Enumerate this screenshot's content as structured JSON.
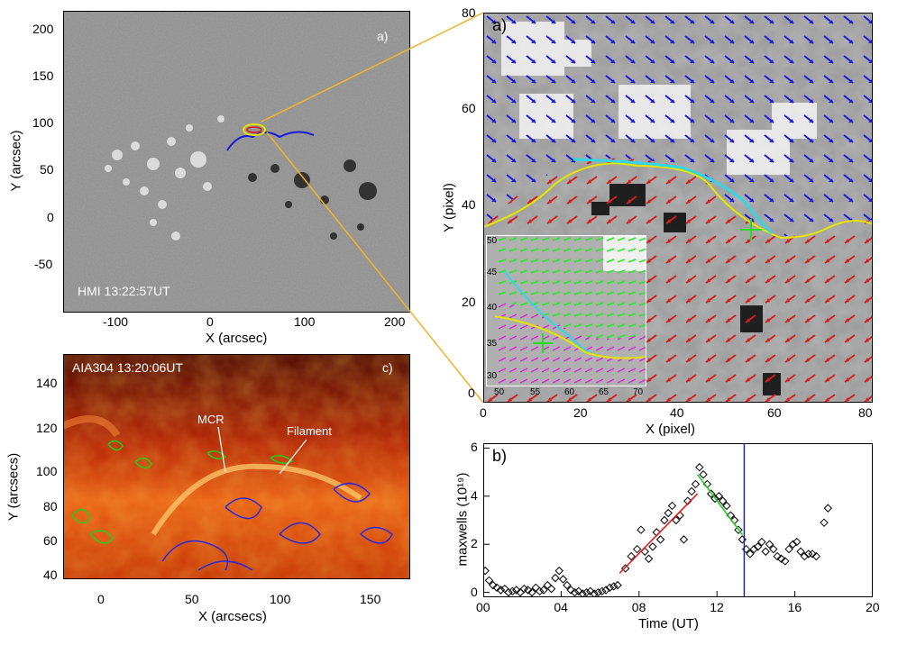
{
  "panel_hmi": {
    "label": "a)",
    "timestamp": "HMI 13:22:57UT",
    "xlabel": "X (arcsec)",
    "ylabel": "Y (arcsec)",
    "xticks": [
      "-100",
      "0",
      "100",
      "200"
    ],
    "yticks": [
      "200",
      "150",
      "100",
      "50",
      "0",
      "-50"
    ]
  },
  "panel_vector": {
    "label": "a)",
    "xlabel": "X (pixel)",
    "ylabel": "Y (pixel)",
    "xticks": [
      "0",
      "20",
      "40",
      "60",
      "80"
    ],
    "yticks": [
      "80",
      "60",
      "40",
      "20",
      "0"
    ],
    "inset_xticks": [
      "50",
      "55",
      "60",
      "65",
      "70"
    ],
    "inset_yticks": [
      "50",
      "45",
      "40",
      "35",
      "30"
    ],
    "colors": {
      "positive": "#d81b1b",
      "negative": "#1a1ad6",
      "pil": "#e6e600",
      "filament": "#33d6e6",
      "marker": "#22dd22"
    }
  },
  "panel_aia": {
    "label": "c)",
    "timestamp": "AIA304 13:20:06UT",
    "annotation_mcr": "MCR",
    "annotation_filament": "Filament",
    "xlabel": "X (arcsecs)",
    "ylabel": "Y (arcsecs)",
    "xticks": [
      "0",
      "50",
      "100",
      "150"
    ],
    "yticks": [
      "140",
      "120",
      "100",
      "80",
      "60",
      "40"
    ]
  },
  "chart_data": {
    "type": "scatter",
    "label": "b)",
    "xlabel": "Time (UT)",
    "ylabel": "maxwells (10¹⁹)",
    "x_tick_labels": [
      "00",
      "04",
      "08",
      "12",
      "16",
      "20"
    ],
    "y_tick_labels": [
      "0",
      "2",
      "4",
      "6"
    ],
    "xlim": [
      0,
      20
    ],
    "ylim": [
      -0.2,
      6.2
    ],
    "points": [
      [
        0.1,
        0.9
      ],
      [
        0.3,
        0.5
      ],
      [
        0.5,
        0.3
      ],
      [
        0.7,
        0.2
      ],
      [
        0.9,
        0.1
      ],
      [
        1.1,
        0.15
      ],
      [
        1.3,
        0.0
      ],
      [
        1.5,
        0.05
      ],
      [
        1.7,
        0.1
      ],
      [
        1.9,
        0.0
      ],
      [
        2.1,
        0.15
      ],
      [
        2.3,
        0.1
      ],
      [
        2.5,
        0.0
      ],
      [
        2.7,
        0.2
      ],
      [
        2.9,
        0.05
      ],
      [
        3.1,
        0.1
      ],
      [
        3.3,
        0.3
      ],
      [
        3.5,
        0.15
      ],
      [
        3.7,
        0.6
      ],
      [
        3.9,
        0.9
      ],
      [
        4.1,
        0.55
      ],
      [
        4.3,
        0.3
      ],
      [
        4.5,
        0.1
      ],
      [
        4.7,
        0.0
      ],
      [
        4.9,
        0.05
      ],
      [
        5.1,
        -0.05
      ],
      [
        5.3,
        0.0
      ],
      [
        5.5,
        0.05
      ],
      [
        5.7,
        -0.05
      ],
      [
        5.9,
        0.0
      ],
      [
        6.1,
        0.05
      ],
      [
        6.3,
        0.1
      ],
      [
        6.5,
        0.2
      ],
      [
        6.7,
        0.25
      ],
      [
        6.9,
        0.3
      ],
      [
        7.3,
        1.0
      ],
      [
        7.6,
        1.5
      ],
      [
        7.9,
        1.8
      ],
      [
        8.1,
        2.6
      ],
      [
        8.3,
        1.7
      ],
      [
        8.5,
        1.4
      ],
      [
        8.7,
        1.9
      ],
      [
        8.9,
        2.5
      ],
      [
        9.1,
        2.2
      ],
      [
        9.3,
        3.0
      ],
      [
        9.5,
        3.3
      ],
      [
        9.7,
        3.6
      ],
      [
        9.9,
        3.0
      ],
      [
        10.1,
        3.2
      ],
      [
        10.3,
        2.2
      ],
      [
        10.5,
        3.8
      ],
      [
        10.7,
        4.2
      ],
      [
        10.9,
        4.5
      ],
      [
        11.1,
        5.2
      ],
      [
        11.3,
        4.9
      ],
      [
        11.5,
        4.5
      ],
      [
        11.7,
        4.1
      ],
      [
        11.9,
        3.9
      ],
      [
        12.1,
        4.0
      ],
      [
        12.3,
        3.8
      ],
      [
        12.5,
        3.6
      ],
      [
        12.7,
        3.2
      ],
      [
        12.9,
        3.0
      ],
      [
        13.1,
        2.6
      ],
      [
        13.3,
        2.2
      ],
      [
        13.5,
        1.8
      ],
      [
        13.7,
        1.6
      ],
      [
        13.9,
        1.8
      ],
      [
        14.1,
        1.9
      ],
      [
        14.3,
        2.1
      ],
      [
        14.5,
        1.7
      ],
      [
        14.7,
        2.0
      ],
      [
        14.9,
        1.8
      ],
      [
        15.1,
        1.5
      ],
      [
        15.3,
        1.4
      ],
      [
        15.5,
        1.3
      ],
      [
        15.7,
        1.8
      ],
      [
        15.9,
        2.0
      ],
      [
        16.1,
        2.1
      ],
      [
        16.3,
        1.7
      ],
      [
        16.5,
        1.5
      ],
      [
        16.7,
        1.6
      ],
      [
        16.9,
        1.6
      ],
      [
        17.1,
        1.5
      ],
      [
        17.5,
        2.9
      ],
      [
        17.7,
        3.5
      ]
    ],
    "fit_rise": {
      "x": [
        7.0,
        11.0
      ],
      "y": [
        0.8,
        4.1
      ],
      "color": "#e01e1e"
    },
    "fit_decay": {
      "x": [
        11.0,
        13.3
      ],
      "y": [
        4.9,
        2.4
      ],
      "color": "#22cc22"
    },
    "vline": {
      "x": 13.4,
      "color": "#1a1ad6"
    }
  }
}
